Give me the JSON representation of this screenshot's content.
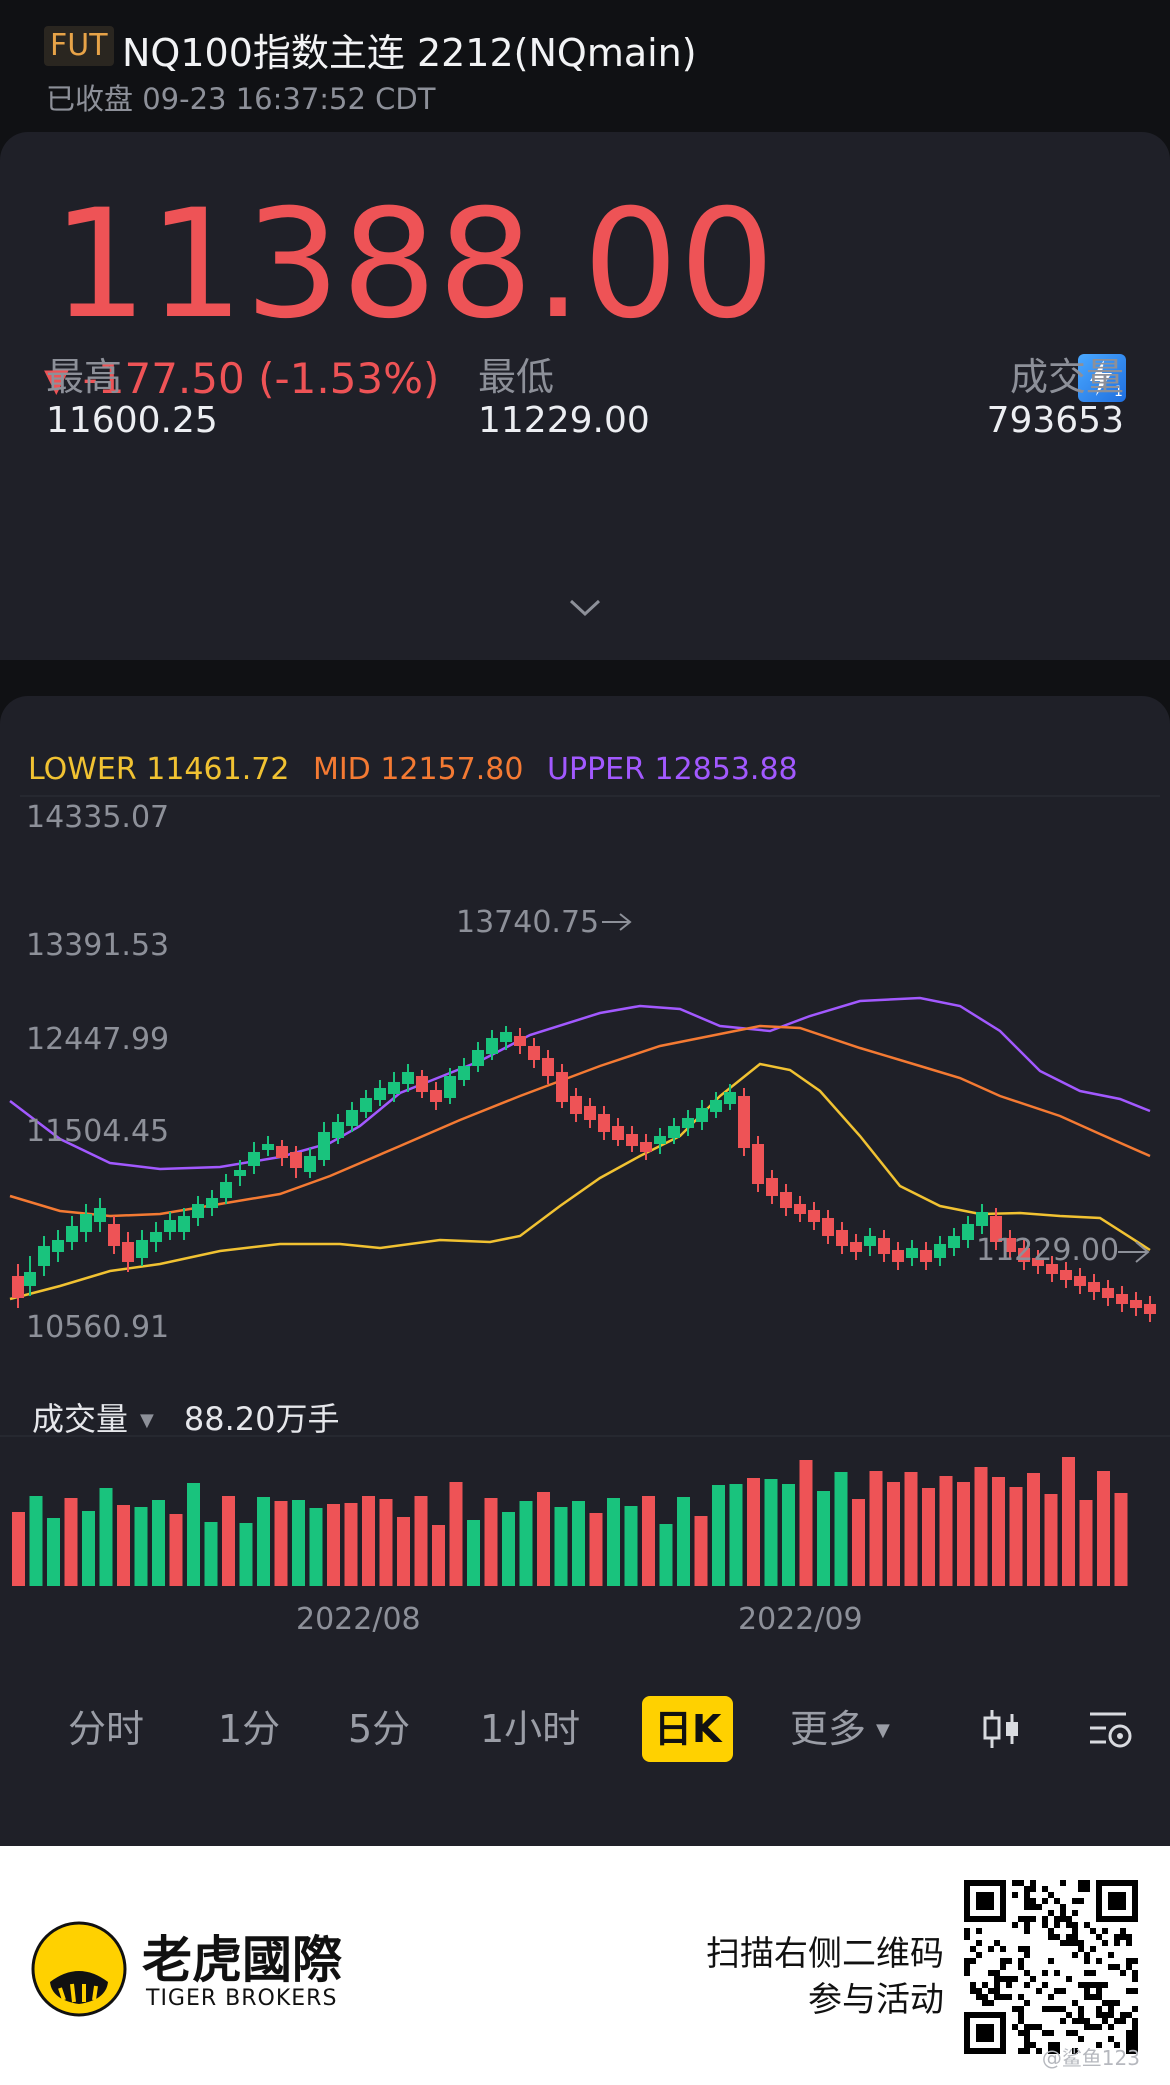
{
  "header": {
    "badge": "FUT",
    "title": "NQ100指数主连 2212(NQmain)",
    "status": "已收盘 09-23 16:37:52 CDT"
  },
  "quote": {
    "price": "11388.00",
    "change": "-177.50 (-1.53%)",
    "direction_icon": "triangle-down-icon",
    "color_down": "#ee5356",
    "stats": [
      {
        "label": "最高",
        "value": "11600.25"
      },
      {
        "label": "最低",
        "value": "11229.00"
      },
      {
        "label": "成交量",
        "value": "793653"
      }
    ]
  },
  "chart": {
    "boll": {
      "lower_label": "LOWER 11461.72",
      "mid_label": "MID 12157.80",
      "upper_label": "UPPER 12853.88",
      "lower_color": "#f1c232",
      "mid_color": "#f47a33",
      "upper_color": "#a259ff"
    },
    "y_ticks": [
      "14335.07",
      "13391.53",
      "12447.99",
      "11504.45",
      "10560.91"
    ],
    "high_marker": "13740.75",
    "low_marker": "11229.00",
    "volume_label": "成交量",
    "volume_value": "88.20万手",
    "dates": [
      "2022/08",
      "2022/09"
    ],
    "up_color": "#19c37d",
    "down_color": "#ee5356"
  },
  "periods": [
    {
      "label": "分时",
      "active": false
    },
    {
      "label": "1分",
      "active": false
    },
    {
      "label": "5分",
      "active": false
    },
    {
      "label": "1小时",
      "active": false
    },
    {
      "label": "日K",
      "active": true
    },
    {
      "label": "更多",
      "active": false
    }
  ],
  "footer": {
    "brand_cn": "老虎國際",
    "brand_en": "TIGER BROKERS",
    "cta_line1": "扫描右侧二维码",
    "cta_line2": "参与活动",
    "watermark": "@鲨鱼123"
  }
}
